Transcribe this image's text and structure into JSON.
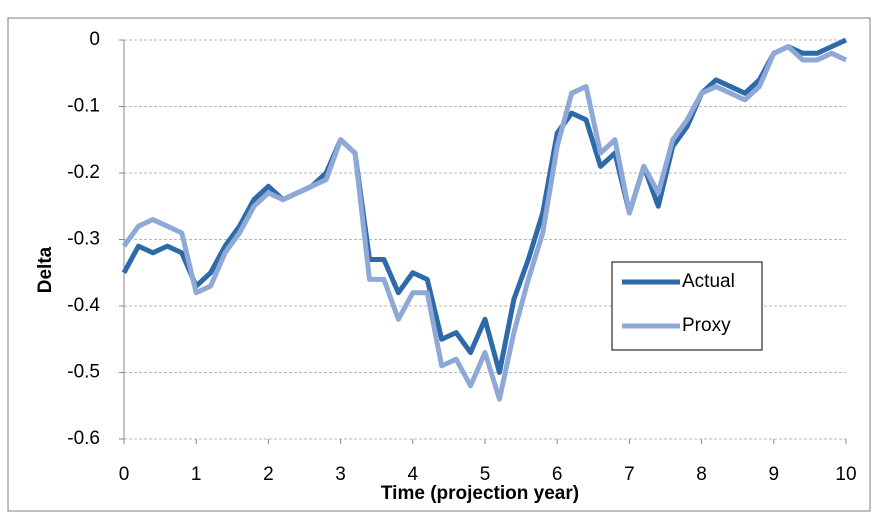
{
  "chart_data": {
    "type": "line",
    "x_label": "Time (projection year)",
    "y_label": "Delta",
    "x": [
      0,
      0.2,
      0.4,
      0.6,
      0.8,
      1,
      1.2,
      1.4,
      1.6,
      1.8,
      2,
      2.2,
      2.4,
      2.6,
      2.8,
      3,
      3.2,
      3.4,
      3.6,
      3.8,
      4,
      4.2,
      4.4,
      4.6,
      4.8,
      5,
      5.2,
      5.4,
      5.6,
      5.8,
      6,
      6.2,
      6.4,
      6.6,
      6.8,
      7,
      7.2,
      7.4,
      7.6,
      7.8,
      8,
      8.2,
      8.4,
      8.6,
      8.8,
      9,
      9.2,
      9.4,
      9.6,
      9.8,
      10
    ],
    "series": [
      {
        "name": "Actual",
        "color": "#2e6aa8",
        "values": [
          -0.35,
          -0.31,
          -0.32,
          -0.31,
          -0.32,
          -0.37,
          -0.35,
          -0.31,
          -0.28,
          -0.24,
          -0.22,
          -0.24,
          -0.23,
          -0.22,
          -0.2,
          -0.15,
          -0.17,
          -0.33,
          -0.33,
          -0.38,
          -0.35,
          -0.36,
          -0.45,
          -0.44,
          -0.47,
          -0.42,
          -0.5,
          -0.39,
          -0.33,
          -0.26,
          -0.14,
          -0.11,
          -0.12,
          -0.19,
          -0.17,
          -0.26,
          -0.19,
          -0.25,
          -0.16,
          -0.13,
          -0.08,
          -0.06,
          -0.07,
          -0.08,
          -0.06,
          -0.02,
          -0.01,
          -0.02,
          -0.02,
          -0.01,
          0
        ]
      },
      {
        "name": "Proxy",
        "color": "#8ea9d8",
        "values": [
          -0.31,
          -0.28,
          -0.27,
          -0.28,
          -0.29,
          -0.38,
          -0.37,
          -0.32,
          -0.29,
          -0.25,
          -0.23,
          -0.24,
          -0.23,
          -0.22,
          -0.21,
          -0.15,
          -0.17,
          -0.36,
          -0.36,
          -0.42,
          -0.38,
          -0.38,
          -0.49,
          -0.48,
          -0.52,
          -0.47,
          -0.54,
          -0.44,
          -0.36,
          -0.29,
          -0.16,
          -0.08,
          -0.07,
          -0.17,
          -0.15,
          -0.26,
          -0.19,
          -0.23,
          -0.15,
          -0.12,
          -0.08,
          -0.07,
          -0.08,
          -0.09,
          -0.07,
          -0.02,
          -0.01,
          -0.03,
          -0.03,
          -0.02,
          -0.03
        ]
      }
    ],
    "xlim": [
      0,
      10
    ],
    "xticks": [
      0,
      1,
      2,
      3,
      4,
      5,
      6,
      7,
      8,
      9,
      10
    ],
    "ylim": [
      -0.6,
      0
    ],
    "yticks": [
      0,
      -0.1,
      -0.2,
      -0.3,
      -0.4,
      -0.5,
      -0.6
    ],
    "grid": true,
    "legend": "right"
  }
}
